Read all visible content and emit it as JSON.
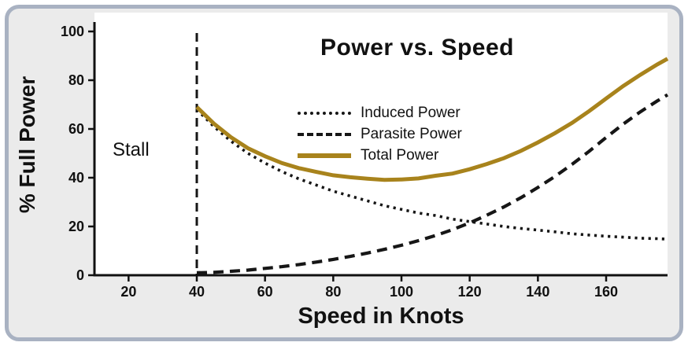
{
  "frame": {
    "border_color": "#a9b2c2",
    "panel_color": "#ebebeb"
  },
  "chart_data": {
    "type": "line",
    "title": "Power vs. Speed",
    "xlabel": "Speed in Knots",
    "ylabel": "% Full Power",
    "xlim": [
      10,
      178
    ],
    "ylim": [
      0,
      100
    ],
    "xticks": [
      20,
      40,
      60,
      80,
      100,
      120,
      140,
      160
    ],
    "yticks": [
      0,
      20,
      40,
      60,
      80,
      100
    ],
    "grid": false,
    "legend_position": "center",
    "stall_x": 40,
    "annotations": [
      {
        "text": "Stall",
        "x": 25,
        "y": 52
      }
    ],
    "x": [
      40,
      45,
      50,
      55,
      60,
      65,
      70,
      75,
      80,
      85,
      90,
      95,
      100,
      105,
      110,
      115,
      120,
      125,
      130,
      135,
      140,
      145,
      150,
      155,
      160,
      165,
      170,
      175,
      178
    ],
    "series": [
      {
        "name": "Induced Power",
        "style": "dotted",
        "color": "#161616",
        "values": [
          68,
          61,
          55,
          50,
          46,
          42.5,
          39.5,
          37,
          34.5,
          32.5,
          30.5,
          28.5,
          27,
          25.5,
          24.5,
          23,
          22,
          21,
          20,
          19.2,
          18.5,
          17.8,
          17,
          16.5,
          16,
          15.6,
          15.2,
          15,
          14.8
        ]
      },
      {
        "name": "Parasite Power",
        "style": "dashed",
        "color": "#161616",
        "values": [
          1,
          1.2,
          1.6,
          2.1,
          2.8,
          3.5,
          4.4,
          5.4,
          6.5,
          7.7,
          9.1,
          10.6,
          12.3,
          14.2,
          16.3,
          18.7,
          21.5,
          24.6,
          28,
          31.8,
          36,
          40.5,
          45.5,
          50.8,
          56.5,
          62,
          67,
          71.5,
          74
        ]
      },
      {
        "name": "Total Power",
        "style": "solid",
        "color": "#a8831c",
        "values": [
          69,
          62.2,
          56.6,
          52.1,
          48.8,
          46,
          43.9,
          42.4,
          41,
          40.2,
          39.6,
          39.1,
          39.3,
          39.7,
          40.8,
          41.7,
          43.5,
          45.6,
          48,
          51,
          54.5,
          58.3,
          62.5,
          67.3,
          72.5,
          77.6,
          82.2,
          86.5,
          88.8
        ]
      }
    ]
  }
}
